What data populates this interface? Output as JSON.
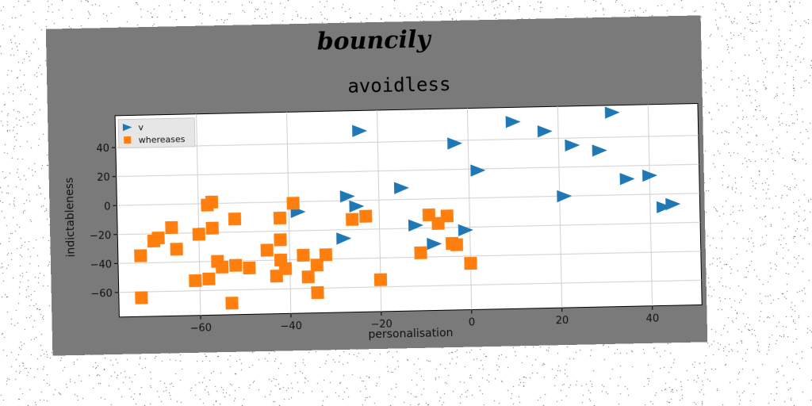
{
  "header_text": "bouncily",
  "chart_data": {
    "type": "scatter",
    "title": "avoidless",
    "xlabel": "personalisation",
    "ylabel": "indictableness",
    "xlim": [
      -78,
      51
    ],
    "ylim": [
      -77,
      62
    ],
    "xticks": [
      -60,
      -40,
      -20,
      0,
      20,
      40
    ],
    "yticks": [
      -60,
      -40,
      -20,
      0,
      20,
      40
    ],
    "grid": true,
    "legend_position": "top-left",
    "series": [
      {
        "name": "v",
        "marker": "triangle-right",
        "color": "#1f77b4",
        "points": [
          [
            -24,
            48
          ],
          [
            -3,
            38
          ],
          [
            2,
            19
          ],
          [
            -15,
            8
          ],
          [
            -27,
            3
          ],
          [
            -25,
            -4
          ],
          [
            -38,
            -7
          ],
          [
            -28,
            -26
          ],
          [
            -12,
            -18
          ],
          [
            -8,
            -31
          ],
          [
            -1,
            -22
          ],
          [
            10,
            52
          ],
          [
            17,
            45
          ],
          [
            23,
            35
          ],
          [
            29,
            31
          ],
          [
            32,
            57
          ],
          [
            21,
            0
          ],
          [
            35,
            11
          ],
          [
            40,
            13
          ],
          [
            43,
            -9
          ],
          [
            45,
            -7
          ]
        ]
      },
      {
        "name": "whereases",
        "marker": "square",
        "color": "#ff7f0e",
        "points": [
          [
            -58,
            -1
          ],
          [
            -57,
            1
          ],
          [
            -39,
            -1
          ],
          [
            -52,
            -11
          ],
          [
            -42,
            -11
          ],
          [
            -26,
            -13
          ],
          [
            -23,
            -11
          ],
          [
            -66,
            -16
          ],
          [
            -60,
            -21
          ],
          [
            -57,
            -17
          ],
          [
            -69,
            -23
          ],
          [
            -70,
            -25
          ],
          [
            -65,
            -31
          ],
          [
            -73,
            -35
          ],
          [
            -42,
            -26
          ],
          [
            -45,
            -33
          ],
          [
            -56,
            -40
          ],
          [
            -55,
            -44
          ],
          [
            -58,
            -52
          ],
          [
            -61,
            -53
          ],
          [
            -52,
            -43
          ],
          [
            -49,
            -45
          ],
          [
            -43,
            -51
          ],
          [
            -41,
            -46
          ],
          [
            -42,
            -40
          ],
          [
            -37,
            -37
          ],
          [
            -36,
            -52
          ],
          [
            -34,
            -44
          ],
          [
            -32,
            -37
          ],
          [
            -34,
            -63
          ],
          [
            -53,
            -69
          ],
          [
            -73,
            -64
          ],
          [
            -20,
            -55
          ],
          [
            -11,
            -37
          ],
          [
            -9,
            -11
          ],
          [
            -7,
            -17
          ],
          [
            -5,
            -12
          ],
          [
            -4,
            -31
          ],
          [
            -3,
            -32
          ],
          [
            0,
            -45
          ]
        ]
      }
    ]
  }
}
